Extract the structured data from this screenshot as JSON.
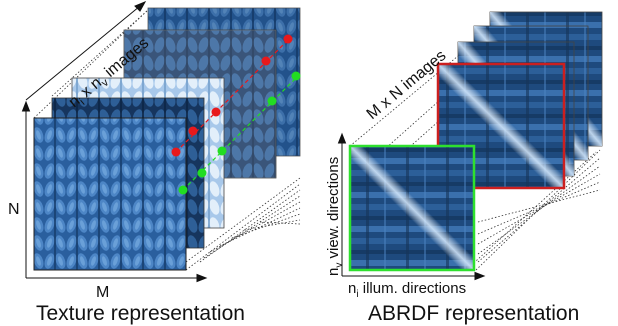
{
  "left_panel": {
    "stack_label": "n_i x n_v images",
    "stack_label_parts": {
      "n1": "n",
      "s1": "i",
      "mid": " x n",
      "s2": "v",
      "tail": " images"
    },
    "axis_y_label": "N",
    "axis_x_label": "M",
    "caption": "Texture representation"
  },
  "right_panel": {
    "stack_label": "M x N images",
    "axis_y_label_parts": {
      "n": "n",
      "sub": "v",
      "rest": " view. directions"
    },
    "axis_x_label_parts": {
      "n": "n",
      "sub": "i",
      "rest": " illum. directions"
    },
    "caption": "ABRDF representation"
  },
  "colors": {
    "red_marker": "#e8191c",
    "green_marker": "#22dd22",
    "red_frame": "#cc1f1f",
    "green_frame": "#2ee02e",
    "texture_dark": "#1f4e86",
    "texture_mid": "#3b74b3",
    "texture_light": "#8fb8e0"
  }
}
